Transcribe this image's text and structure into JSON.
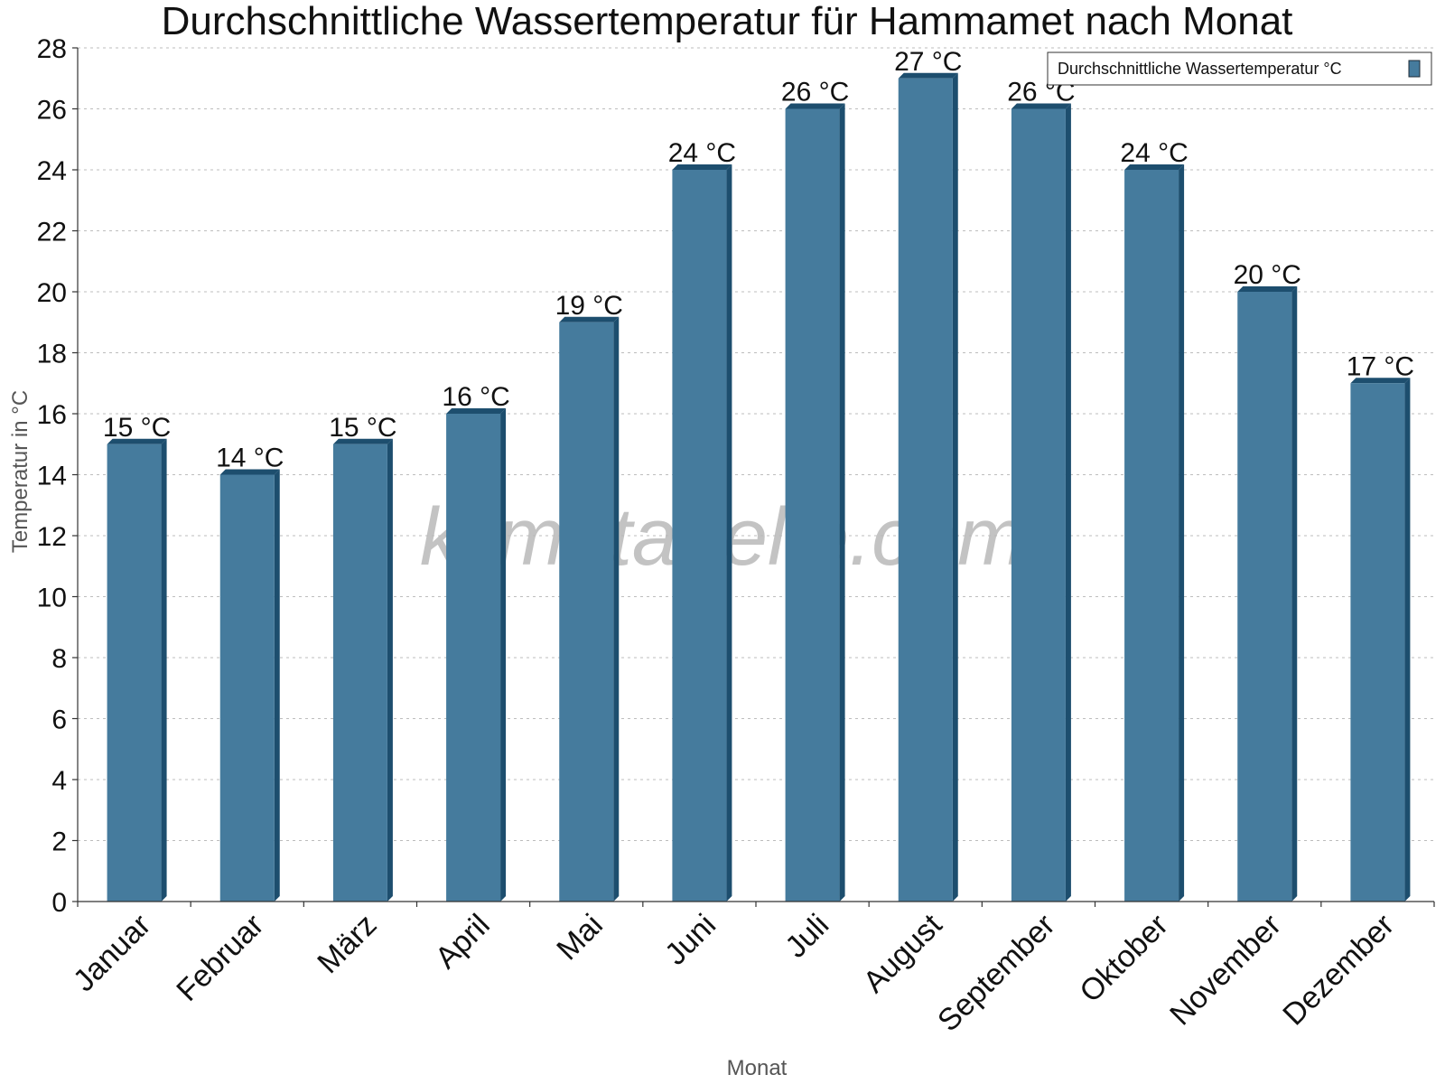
{
  "chart_data": {
    "type": "bar",
    "title": "Durchschnittliche Wassertemperatur für Hammamet nach Monat",
    "xlabel": "Monat",
    "ylabel": "Temperatur in °C",
    "ylim": [
      0,
      28
    ],
    "yticks": [
      0,
      2,
      4,
      6,
      8,
      10,
      12,
      14,
      16,
      18,
      20,
      22,
      24,
      26,
      28
    ],
    "grid": true,
    "legend_position": "top-right",
    "categories": [
      "Januar",
      "Februar",
      "März",
      "April",
      "Mai",
      "Juni",
      "Juli",
      "August",
      "September",
      "Oktober",
      "November",
      "Dezember"
    ],
    "series": [
      {
        "name": "Durchschnittliche Wassertemperatur °C",
        "values": [
          15,
          14,
          15,
          16,
          19,
          24,
          26,
          27,
          26,
          24,
          20,
          17
        ],
        "labels": [
          "15 °C",
          "14 °C",
          "15 °C",
          "16 °C",
          "19 °C",
          "24 °C",
          "26 °C",
          "27 °C",
          "26 °C",
          "24 °C",
          "20 °C",
          "17 °C"
        ],
        "color": "#457b9d",
        "shade_color": "#1d4e6e"
      }
    ],
    "watermark": "klimatabelle.com"
  }
}
